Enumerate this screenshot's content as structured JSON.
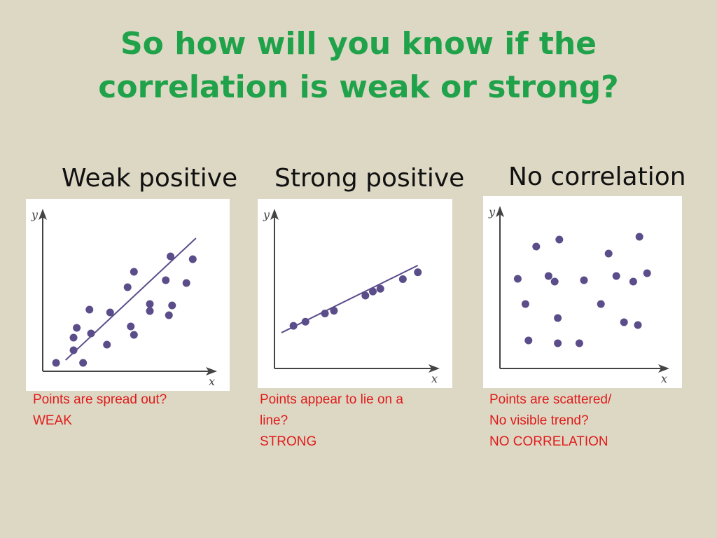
{
  "slide": {
    "title_line1": "So how will you know if the",
    "title_line2": "correlation is weak or strong?"
  },
  "colors": {
    "title": "#1fa24a",
    "caption": "#e01b1b",
    "points": "#5b4d8a",
    "axes": "#444444",
    "background": "#ddd8c4"
  },
  "panels": [
    {
      "heading": "Weak positive",
      "caption_lines": [
        "Points are spread out?",
        "WEAK"
      ]
    },
    {
      "heading": "Strong positive",
      "caption_lines": [
        "Points appear to lie on a",
        "line?",
        "STRONG"
      ]
    },
    {
      "heading": "No correlation",
      "caption_lines": [
        "Points are scattered/",
        "No visible trend?",
        "NO CORRELATION"
      ]
    }
  ],
  "chart_data": [
    {
      "type": "scatter",
      "title": "Weak positive",
      "xlabel": "x",
      "ylabel": "y",
      "xlim": [
        0,
        10
      ],
      "ylim": [
        0,
        10
      ],
      "trend_line": [
        [
          1.0,
          0.5
        ],
        [
          9.2,
          9.2
        ]
      ],
      "points": [
        [
          0.4,
          0.3
        ],
        [
          2.1,
          0.3
        ],
        [
          1.5,
          1.2
        ],
        [
          1.5,
          2.1
        ],
        [
          1.7,
          2.8
        ],
        [
          2.6,
          2.4
        ],
        [
          3.6,
          1.6
        ],
        [
          2.5,
          4.1
        ],
        [
          3.8,
          3.9
        ],
        [
          5.1,
          2.9
        ],
        [
          5.3,
          2.3
        ],
        [
          4.9,
          5.7
        ],
        [
          5.3,
          6.8
        ],
        [
          6.3,
          4.0
        ],
        [
          6.3,
          4.5
        ],
        [
          7.3,
          6.2
        ],
        [
          7.5,
          3.7
        ],
        [
          7.7,
          4.4
        ],
        [
          7.6,
          7.9
        ],
        [
          8.6,
          6.0
        ],
        [
          9.0,
          7.7
        ]
      ]
    },
    {
      "type": "scatter",
      "title": "Strong positive",
      "xlabel": "x",
      "ylabel": "y",
      "xlim": [
        0,
        10
      ],
      "ylim": [
        0,
        10
      ],
      "trend_line": [
        [
          0.0,
          2.3
        ],
        [
          9.1,
          7.2
        ]
      ],
      "points": [
        [
          0.8,
          2.8
        ],
        [
          1.6,
          3.1
        ],
        [
          2.9,
          3.7
        ],
        [
          3.5,
          3.9
        ],
        [
          5.6,
          5.0
        ],
        [
          6.1,
          5.3
        ],
        [
          6.6,
          5.5
        ],
        [
          8.1,
          6.2
        ],
        [
          9.1,
          6.7
        ]
      ]
    },
    {
      "type": "scatter",
      "title": "No correlation",
      "xlabel": "x",
      "ylabel": "y",
      "xlim": [
        0,
        10
      ],
      "ylim": [
        0,
        10
      ],
      "points": [
        [
          0.7,
          6.1
        ],
        [
          1.2,
          4.3
        ],
        [
          1.4,
          1.7
        ],
        [
          1.9,
          8.4
        ],
        [
          2.7,
          6.3
        ],
        [
          3.1,
          5.9
        ],
        [
          3.4,
          8.9
        ],
        [
          3.3,
          3.3
        ],
        [
          3.3,
          1.5
        ],
        [
          4.7,
          1.5
        ],
        [
          5.0,
          6.0
        ],
        [
          6.1,
          4.3
        ],
        [
          6.6,
          7.9
        ],
        [
          7.1,
          6.3
        ],
        [
          7.6,
          3.0
        ],
        [
          8.2,
          5.9
        ],
        [
          8.6,
          9.1
        ],
        [
          8.5,
          2.8
        ],
        [
          9.1,
          6.5
        ]
      ]
    }
  ]
}
